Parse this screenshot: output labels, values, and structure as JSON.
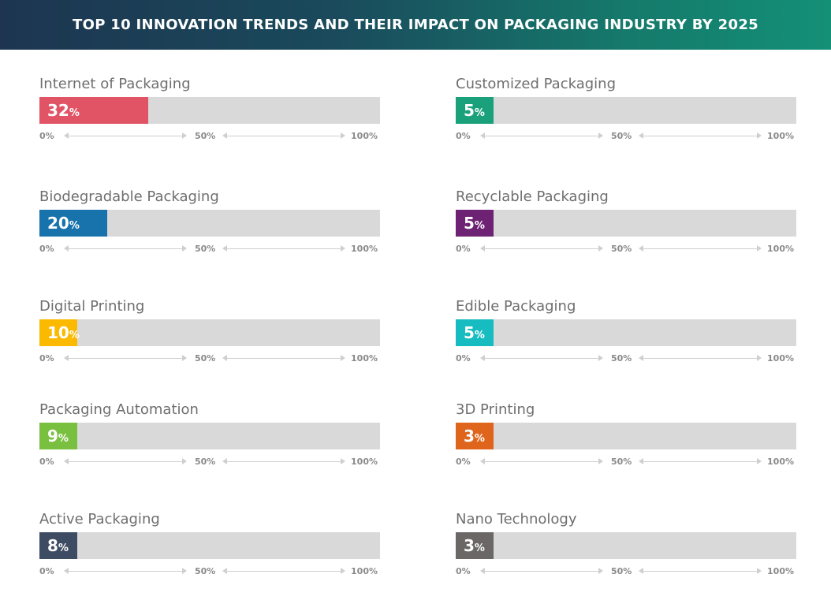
{
  "header": {
    "title": "TOP 10 INNOVATION TRENDS AND THEIR IMPACT ON PACKAGING INDUSTRY BY 2025"
  },
  "scale": {
    "min_label": "0%",
    "mid_label": "50%",
    "max_label": "100%"
  },
  "chart_data": {
    "type": "bar",
    "title": "TOP 10 INNOVATION TRENDS AND THEIR IMPACT ON PACKAGING INDUSTRY BY 2025",
    "xlabel": "",
    "ylabel": "",
    "ylim": [
      0,
      100
    ],
    "unit": "%",
    "categories": [
      "Internet of Packaging",
      "Biodegradable Packaging",
      "Digital Printing",
      "Packaging Automation",
      "Active Packaging",
      "Customized Packaging",
      "Recyclable Packaging",
      "Edible Packaging",
      "3D Printing",
      "Nano Technology"
    ],
    "values": [
      32,
      20,
      10,
      9,
      8,
      5,
      5,
      5,
      3,
      3
    ],
    "colors": [
      "#e05466",
      "#1872ac",
      "#fbb900",
      "#7ac040",
      "#3e4c63",
      "#1aa17c",
      "#6e2273",
      "#17bcc0",
      "#e0651c",
      "#6b6766"
    ],
    "value_labels": [
      "32",
      "20",
      "10",
      "9",
      "8",
      "5",
      "5",
      "5",
      "3",
      "3"
    ],
    "grid": false,
    "legend": "none"
  }
}
